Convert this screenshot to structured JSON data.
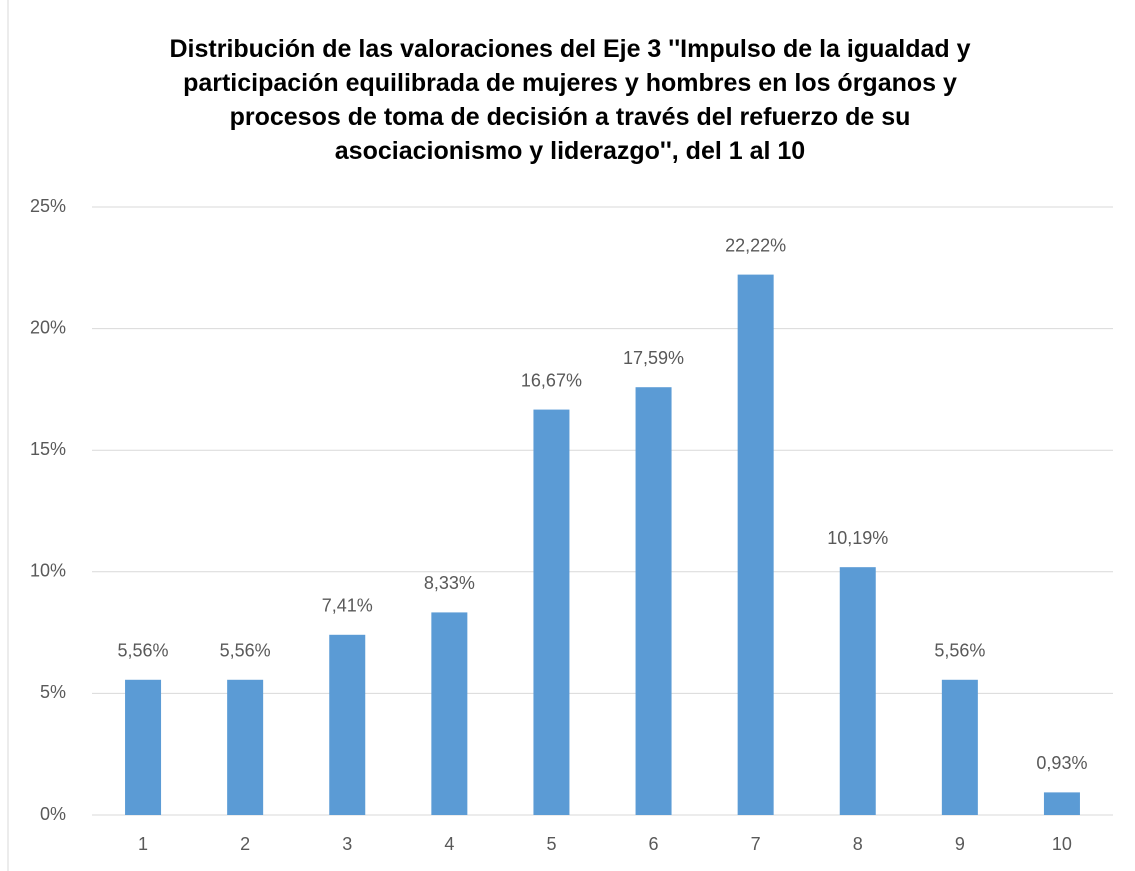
{
  "chart_data": {
    "type": "bar",
    "title": "Distribución de las valoraciones del Eje 3 ''Impulso de la igualdad y participación equilibrada de mujeres y hombres en los órganos y procesos de toma de decisión a través del refuerzo de su asociacionismo y liderazgo'', del 1 al 10",
    "categories": [
      "1",
      "2",
      "3",
      "4",
      "5",
      "6",
      "7",
      "8",
      "9",
      "10"
    ],
    "values": [
      5.56,
      5.56,
      7.41,
      8.33,
      16.67,
      17.59,
      22.22,
      10.19,
      5.56,
      0.93
    ],
    "value_labels": [
      "5,56%",
      "5,56%",
      "7,41%",
      "8,33%",
      "16,67%",
      "17,59%",
      "22,22%",
      "10,19%",
      "5,56%",
      "0,93%"
    ],
    "color": "#5b9bd5",
    "ylim": [
      0,
      25
    ],
    "yticks": [
      {
        "value": 0,
        "label": "0%"
      },
      {
        "value": 5,
        "label": "5%"
      },
      {
        "value": 10,
        "label": "10%"
      },
      {
        "value": 15,
        "label": "15%"
      },
      {
        "value": 20,
        "label": "20%"
      },
      {
        "value": 25,
        "label": "25%"
      }
    ],
    "grid": true
  }
}
